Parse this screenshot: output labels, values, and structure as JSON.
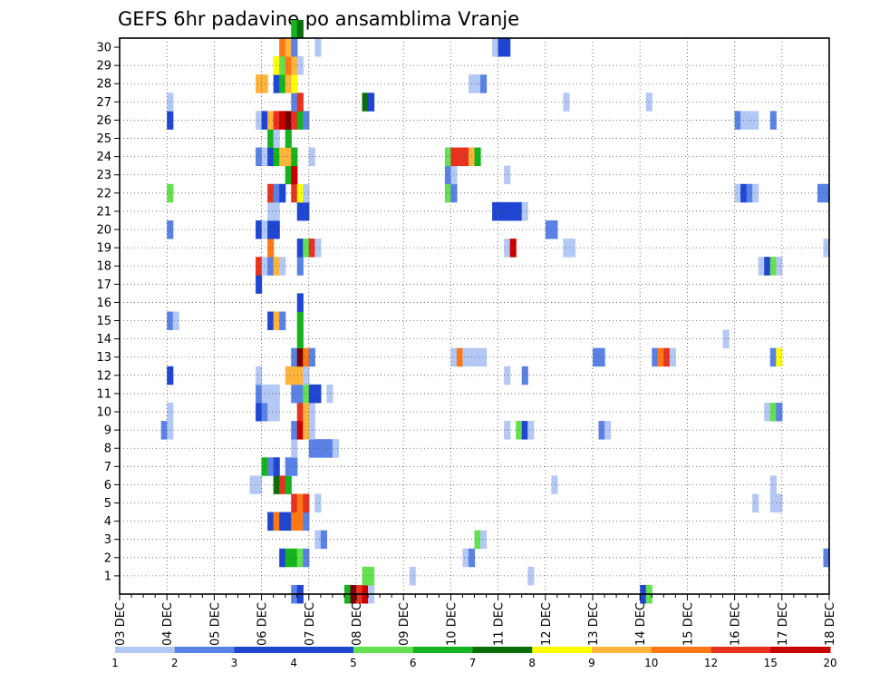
{
  "chart_data": {
    "type": "heatmap",
    "title": "GEFS 6hr padavine po ansamblima Vranje",
    "xlabel": "",
    "ylabel": "",
    "x_tick_labels": [
      "03 DEC",
      "04 DEC",
      "05 DEC",
      "06 DEC",
      "07 DEC",
      "08 DEC",
      "09 DEC",
      "10 DEC",
      "11 DEC",
      "12 DEC",
      "13 DEC",
      "14 DEC",
      "15 DEC",
      "16 DEC",
      "17 DEC",
      "18 DEC"
    ],
    "y_tick_labels": [
      "1",
      "2",
      "3",
      "4",
      "5",
      "6",
      "7",
      "8",
      "9",
      "10",
      "11",
      "12",
      "13",
      "14",
      "15",
      "16",
      "17",
      "18",
      "19",
      "20",
      "21",
      "22",
      "23",
      "24",
      "25",
      "26",
      "27",
      "28",
      "29",
      "30"
    ],
    "x_unit": "6-hour step from 03 DEC 00Z (4 steps per day)",
    "y_range": [
      0,
      30
    ],
    "grid": true,
    "colorbar": {
      "position": "bottom",
      "labels": [
        "1",
        "2",
        "3",
        "4",
        "5",
        "6",
        "7",
        "8",
        "9",
        "10",
        "12",
        "15",
        "20"
      ],
      "colors": [
        "#b4c8f5",
        "#5a82e6",
        "#1e46d2",
        "#1e46d2",
        "#64e150",
        "#14b41e",
        "#0a6e0a",
        "#ffff00",
        "#ffb43c",
        "#ff7814",
        "#e6321e",
        "#c80000",
        "#780000"
      ]
    },
    "cells": [
      [
        29,
        0,
        2
      ],
      [
        30,
        0,
        3
      ],
      [
        38,
        0,
        6
      ],
      [
        39,
        0,
        13
      ],
      [
        40,
        0,
        11
      ],
      [
        41,
        0,
        12
      ],
      [
        42,
        0,
        1
      ],
      [
        88,
        0,
        3
      ],
      [
        89,
        0,
        5
      ],
      [
        41,
        1,
        5
      ],
      [
        41,
        1,
        5
      ],
      [
        42,
        1,
        5
      ],
      [
        49,
        1,
        1
      ],
      [
        69,
        1,
        1
      ],
      [
        27,
        2,
        3
      ],
      [
        28,
        2,
        6
      ],
      [
        29,
        2,
        6
      ],
      [
        30,
        2,
        5
      ],
      [
        31,
        2,
        2
      ],
      [
        58,
        2,
        1
      ],
      [
        59,
        2,
        2
      ],
      [
        119,
        2,
        2
      ],
      [
        60,
        3,
        5
      ],
      [
        61,
        3,
        1
      ],
      [
        33,
        3,
        1
      ],
      [
        34,
        3,
        2
      ],
      [
        25,
        4,
        3
      ],
      [
        26,
        4,
        10
      ],
      [
        27,
        4,
        3
      ],
      [
        28,
        4,
        4
      ],
      [
        29,
        4,
        10
      ],
      [
        30,
        4,
        10
      ],
      [
        31,
        4,
        2
      ],
      [
        29,
        5,
        11
      ],
      [
        30,
        5,
        10
      ],
      [
        31,
        5,
        11
      ],
      [
        33,
        5,
        1
      ],
      [
        33,
        5,
        1
      ],
      [
        107,
        5,
        1
      ],
      [
        110,
        5,
        1
      ],
      [
        111,
        5,
        1
      ],
      [
        22,
        6,
        1
      ],
      [
        23,
        6,
        1
      ],
      [
        26,
        6,
        7
      ],
      [
        27,
        6,
        11
      ],
      [
        28,
        6,
        6
      ],
      [
        73,
        6,
        1
      ],
      [
        110,
        6,
        1
      ],
      [
        24,
        7,
        6
      ],
      [
        25,
        7,
        2
      ],
      [
        26,
        7,
        3
      ],
      [
        28,
        7,
        2
      ],
      [
        29,
        7,
        2
      ],
      [
        29,
        8,
        1
      ],
      [
        32,
        8,
        2
      ],
      [
        33,
        8,
        2
      ],
      [
        34,
        8,
        2
      ],
      [
        35,
        8,
        2
      ],
      [
        36,
        8,
        1
      ],
      [
        7,
        9,
        2
      ],
      [
        8,
        9,
        1
      ],
      [
        29,
        9,
        2
      ],
      [
        30,
        9,
        12
      ],
      [
        31,
        9,
        9
      ],
      [
        32,
        9,
        1
      ],
      [
        65,
        9,
        1
      ],
      [
        67,
        9,
        5
      ],
      [
        68,
        9,
        4
      ],
      [
        69,
        9,
        1
      ],
      [
        81,
        9,
        2
      ],
      [
        82,
        9,
        1
      ],
      [
        8,
        10,
        1
      ],
      [
        23,
        10,
        4
      ],
      [
        24,
        10,
        2
      ],
      [
        25,
        10,
        1
      ],
      [
        26,
        10,
        1
      ],
      [
        30,
        10,
        11
      ],
      [
        31,
        10,
        9
      ],
      [
        32,
        10,
        1
      ],
      [
        109,
        10,
        1
      ],
      [
        110,
        10,
        5
      ],
      [
        111,
        10,
        2
      ],
      [
        23,
        11,
        2
      ],
      [
        24,
        11,
        1
      ],
      [
        25,
        11,
        1
      ],
      [
        26,
        11,
        1
      ],
      [
        29,
        11,
        2
      ],
      [
        30,
        11,
        2
      ],
      [
        31,
        11,
        5
      ],
      [
        32,
        11,
        3
      ],
      [
        33,
        11,
        4
      ],
      [
        35,
        11,
        1
      ],
      [
        8,
        12,
        3
      ],
      [
        23,
        12,
        1
      ],
      [
        28,
        12,
        9
      ],
      [
        29,
        12,
        9
      ],
      [
        30,
        12,
        9
      ],
      [
        31,
        12,
        1
      ],
      [
        65,
        12,
        1
      ],
      [
        68,
        12,
        2
      ],
      [
        29,
        13,
        2
      ],
      [
        30,
        13,
        13
      ],
      [
        31,
        13,
        10
      ],
      [
        32,
        13,
        2
      ],
      [
        56,
        13,
        1
      ],
      [
        57,
        13,
        10
      ],
      [
        58,
        13,
        1
      ],
      [
        59,
        13,
        1
      ],
      [
        60,
        13,
        1
      ],
      [
        61,
        13,
        1
      ],
      [
        80,
        13,
        2
      ],
      [
        81,
        13,
        2
      ],
      [
        90,
        13,
        2
      ],
      [
        91,
        13,
        10
      ],
      [
        92,
        13,
        11
      ],
      [
        93,
        13,
        1
      ],
      [
        110,
        13,
        2
      ],
      [
        111,
        13,
        8
      ],
      [
        30,
        14,
        6
      ],
      [
        102,
        14,
        1
      ],
      [
        8,
        15,
        2
      ],
      [
        9,
        15,
        1
      ],
      [
        25,
        15,
        3
      ],
      [
        26,
        15,
        9
      ],
      [
        27,
        15,
        2
      ],
      [
        30,
        15,
        6
      ],
      [
        30,
        16,
        3
      ],
      [
        23,
        17,
        4
      ],
      [
        23,
        18,
        11
      ],
      [
        24,
        18,
        1
      ],
      [
        25,
        18,
        2
      ],
      [
        26,
        18,
        9
      ],
      [
        27,
        18,
        1
      ],
      [
        30,
        18,
        2
      ],
      [
        108,
        18,
        1
      ],
      [
        109,
        18,
        3
      ],
      [
        110,
        18,
        5
      ],
      [
        111,
        18,
        1
      ],
      [
        25,
        19,
        10
      ],
      [
        30,
        19,
        3
      ],
      [
        31,
        19,
        5
      ],
      [
        32,
        19,
        11
      ],
      [
        33,
        19,
        1
      ],
      [
        65,
        19,
        1
      ],
      [
        66,
        19,
        12
      ],
      [
        75,
        19,
        1
      ],
      [
        76,
        19,
        1
      ],
      [
        119,
        19,
        1
      ],
      [
        8,
        20,
        2
      ],
      [
        23,
        20,
        3
      ],
      [
        24,
        20,
        1
      ],
      [
        25,
        20,
        3
      ],
      [
        26,
        20,
        4
      ],
      [
        72,
        20,
        2
      ],
      [
        73,
        20,
        2
      ],
      [
        63,
        21,
        4
      ],
      [
        64,
        21,
        9
      ],
      [
        65,
        21,
        3
      ],
      [
        66,
        21,
        3
      ],
      [
        67,
        21,
        4
      ],
      [
        68,
        21,
        1
      ],
      [
        25,
        21,
        1
      ],
      [
        26,
        21,
        1
      ],
      [
        30,
        21,
        4
      ],
      [
        31,
        21,
        4
      ],
      [
        64,
        21,
        4
      ],
      [
        8,
        22,
        5
      ],
      [
        25,
        22,
        11
      ],
      [
        26,
        22,
        2
      ],
      [
        27,
        22,
        3
      ],
      [
        29,
        22,
        11
      ],
      [
        30,
        22,
        8
      ],
      [
        31,
        22,
        1
      ],
      [
        55,
        22,
        5
      ],
      [
        56,
        22,
        2
      ],
      [
        104,
        22,
        1
      ],
      [
        105,
        22,
        3
      ],
      [
        106,
        22,
        2
      ],
      [
        107,
        22,
        1
      ],
      [
        118,
        22,
        2
      ],
      [
        119,
        22,
        2
      ],
      [
        28,
        23,
        6
      ],
      [
        29,
        23,
        12
      ],
      [
        55,
        23,
        2
      ],
      [
        56,
        23,
        1
      ],
      [
        65,
        23,
        1
      ],
      [
        23,
        24,
        2
      ],
      [
        24,
        24,
        1
      ],
      [
        25,
        24,
        4
      ],
      [
        26,
        24,
        6
      ],
      [
        27,
        24,
        9
      ],
      [
        28,
        24,
        9
      ],
      [
        29,
        24,
        6
      ],
      [
        32,
        24,
        1
      ],
      [
        55,
        24,
        5
      ],
      [
        56,
        24,
        11
      ],
      [
        57,
        24,
        11
      ],
      [
        58,
        24,
        11
      ],
      [
        59,
        24,
        9
      ],
      [
        60,
        24,
        6
      ],
      [
        25,
        25,
        6
      ],
      [
        26,
        25,
        1
      ],
      [
        28,
        25,
        6
      ],
      [
        8,
        26,
        3
      ],
      [
        23,
        26,
        1
      ],
      [
        24,
        26,
        3
      ],
      [
        25,
        26,
        9
      ],
      [
        26,
        26,
        11
      ],
      [
        27,
        26,
        12
      ],
      [
        28,
        26,
        13
      ],
      [
        29,
        26,
        11
      ],
      [
        30,
        26,
        6
      ],
      [
        31,
        26,
        2
      ],
      [
        104,
        26,
        2
      ],
      [
        105,
        26,
        1
      ],
      [
        106,
        26,
        1
      ],
      [
        107,
        26,
        1
      ],
      [
        110,
        26,
        2
      ],
      [
        8,
        27,
        1
      ],
      [
        29,
        27,
        2
      ],
      [
        30,
        27,
        11
      ],
      [
        41,
        27,
        7
      ],
      [
        42,
        27,
        4
      ],
      [
        75,
        27,
        1
      ],
      [
        89,
        27,
        1
      ],
      [
        23,
        28,
        9
      ],
      [
        24,
        28,
        9
      ],
      [
        26,
        28,
        3
      ],
      [
        27,
        28,
        6
      ],
      [
        28,
        28,
        9
      ],
      [
        29,
        28,
        8
      ],
      [
        59,
        28,
        1
      ],
      [
        60,
        28,
        1
      ],
      [
        61,
        28,
        2
      ],
      [
        26,
        29,
        8
      ],
      [
        27,
        29,
        5
      ],
      [
        28,
        29,
        10
      ],
      [
        29,
        29,
        9
      ],
      [
        30,
        29,
        1
      ],
      [
        27,
        30,
        10
      ],
      [
        28,
        30,
        9
      ],
      [
        29,
        30,
        2
      ],
      [
        33,
        30,
        1
      ],
      [
        63,
        30,
        1
      ],
      [
        64,
        30,
        4
      ],
      [
        65,
        30,
        3
      ],
      [
        29,
        31,
        6
      ],
      [
        30,
        31,
        7
      ]
    ]
  }
}
